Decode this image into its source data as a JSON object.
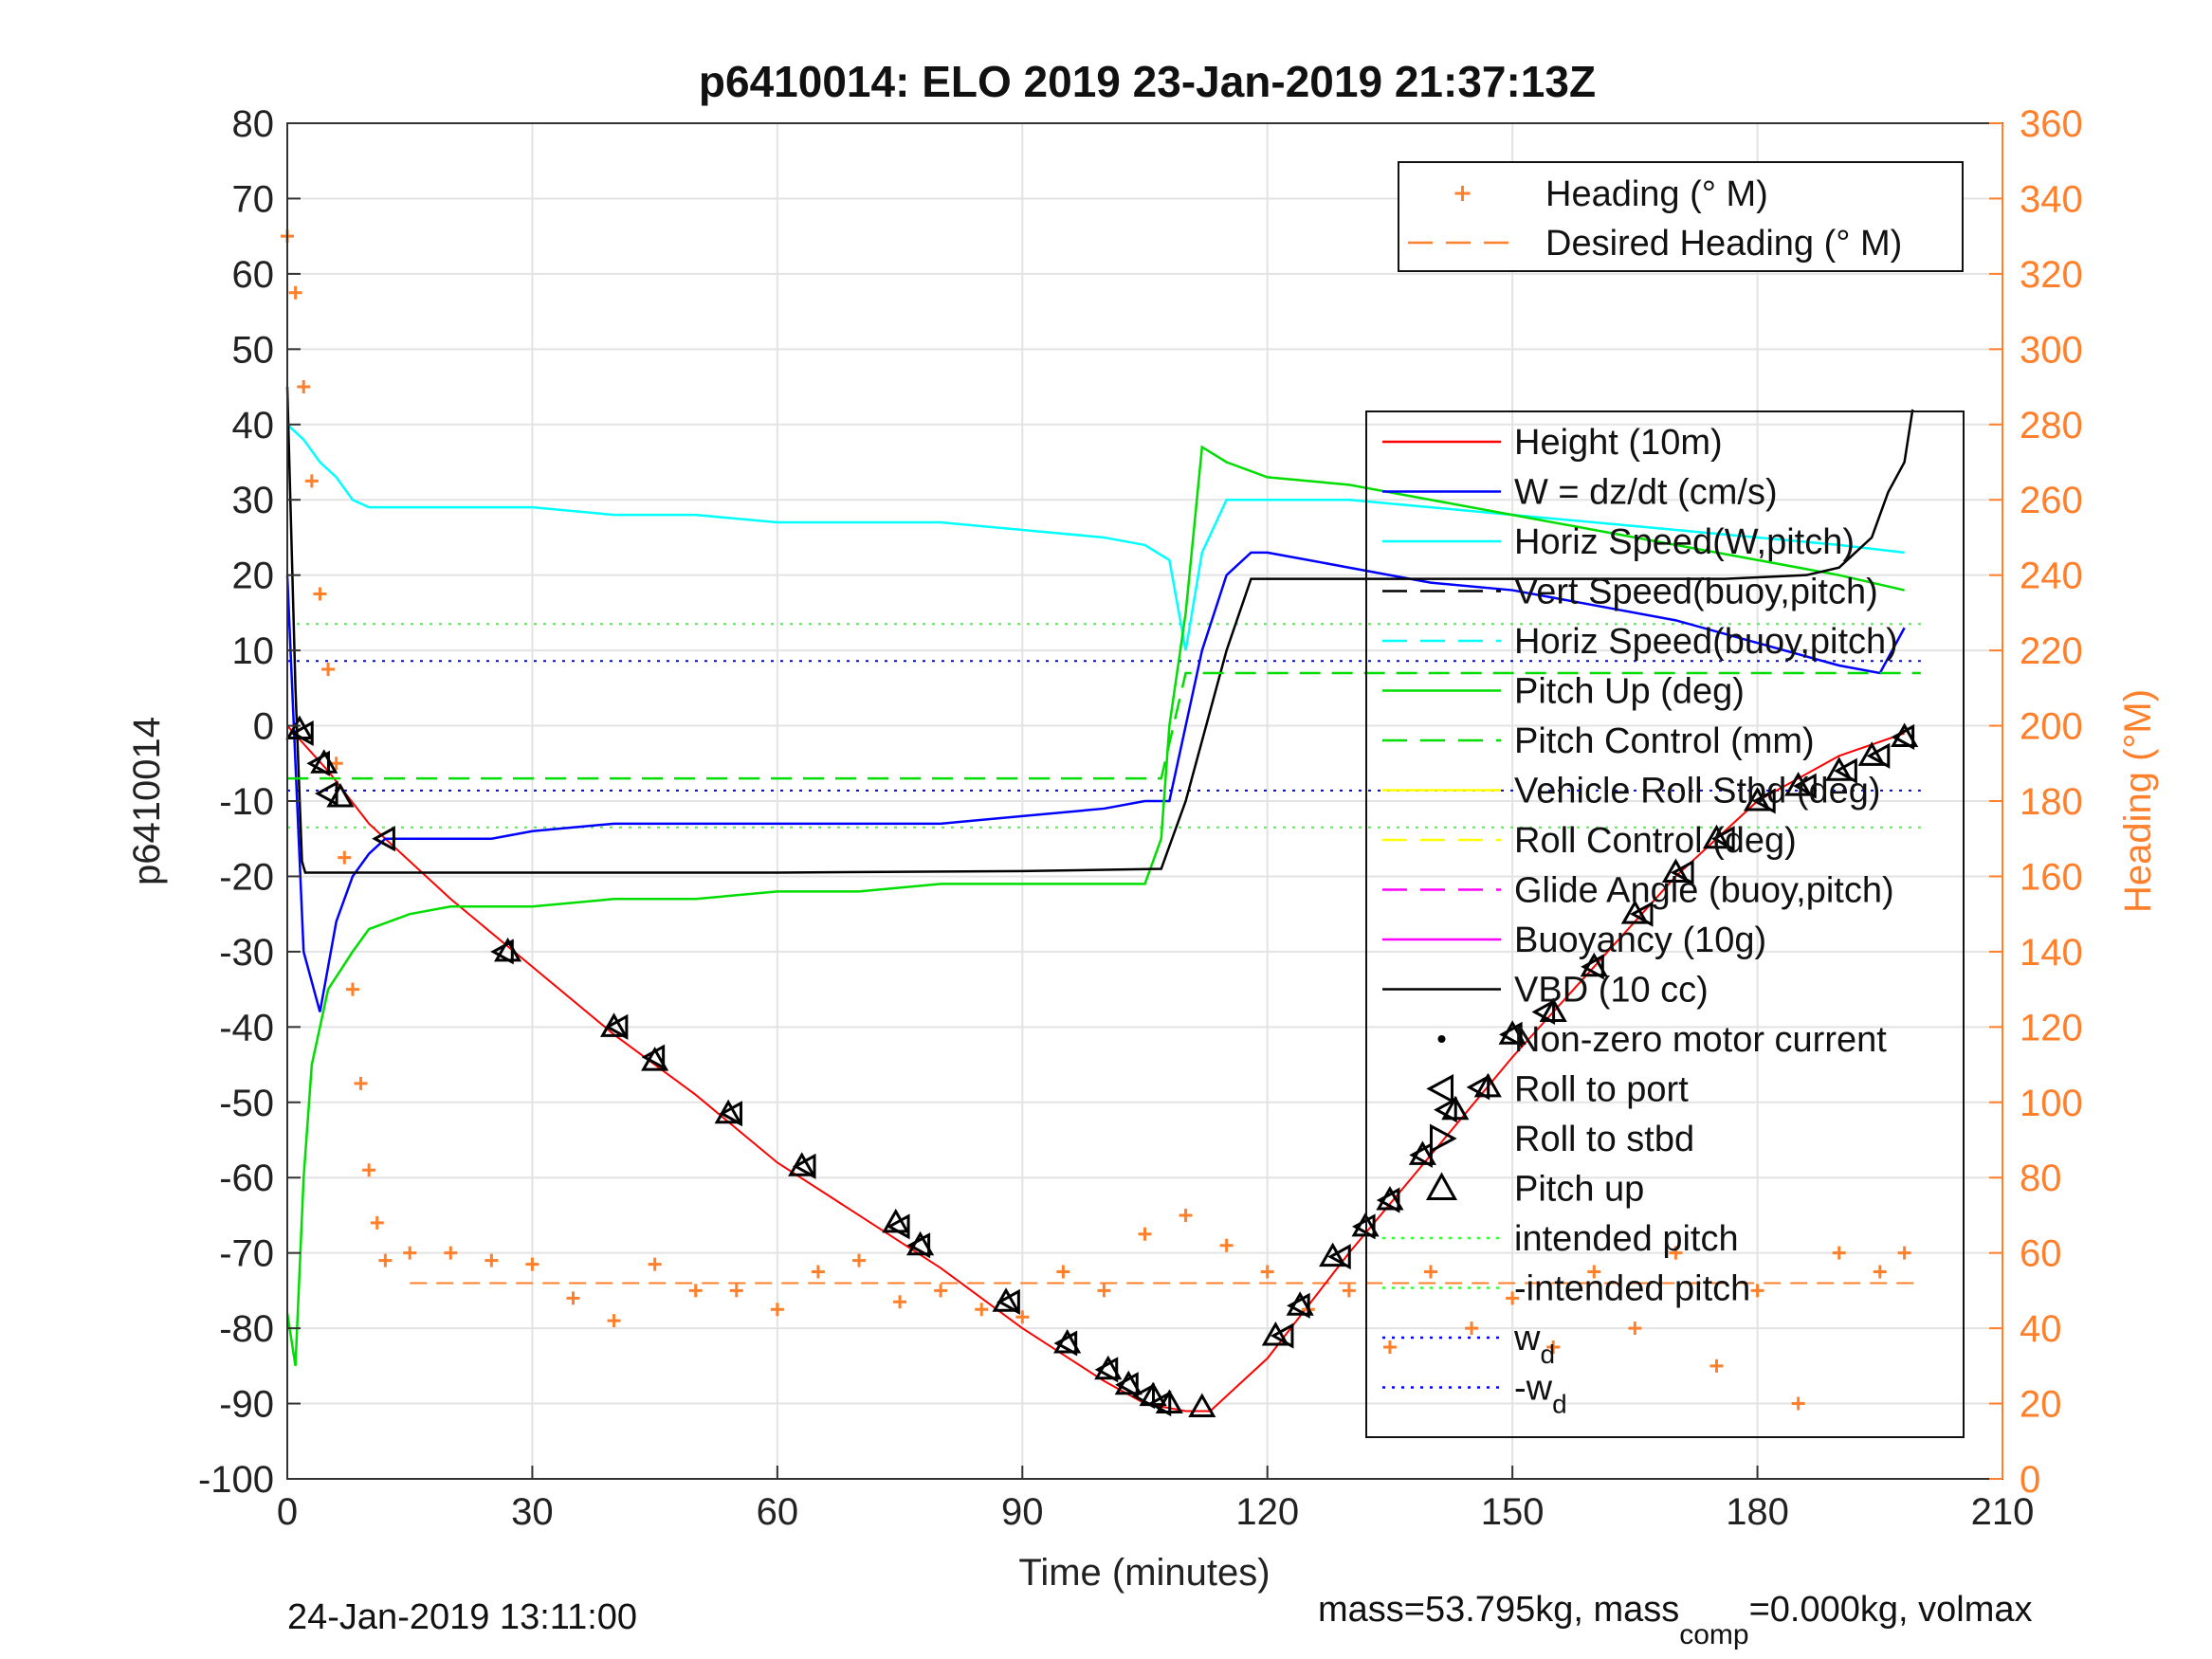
{
  "chart_data": {
    "type": "line",
    "title": "p6410014: ELO 2019 23-Jan-2019 21:37:13Z",
    "xlabel": "Time (minutes)",
    "ylabel": "p6410014",
    "y2label": "Heading (°M)",
    "xlim": [
      0,
      210
    ],
    "ylim": [
      -100,
      80
    ],
    "y2lim": [
      0,
      360
    ],
    "x_ticks": [
      0,
      30,
      60,
      90,
      120,
      150,
      180,
      210
    ],
    "y_ticks": [
      80,
      70,
      60,
      50,
      40,
      30,
      20,
      10,
      0,
      -10,
      -20,
      -30,
      -40,
      -50,
      -60,
      -70,
      -80,
      -90,
      -100
    ],
    "y2_ticks": [
      360,
      340,
      320,
      300,
      280,
      260,
      240,
      220,
      200,
      180,
      160,
      140,
      120,
      100,
      80,
      60,
      40,
      20,
      0
    ],
    "grid": true,
    "footer_left": "24-Jan-2019 13:11:00",
    "footer_right": "mass=53.795kg, mass<sub>comp</sub>=0.000kg, volmax",
    "legend_top": {
      "placement": "top-right",
      "entries": [
        {
          "label": "Heading (° M)",
          "color": "#ff7f2a",
          "style": "plus"
        },
        {
          "label": "Desired Heading (° M)",
          "color": "#ff7f2a",
          "style": "dashed"
        }
      ]
    },
    "legend_main": {
      "placement": "right",
      "entries": [
        {
          "label": "Height (10m)",
          "color": "#ff0000",
          "style": "solid"
        },
        {
          "label": "W = dz/dt (cm/s)",
          "color": "#0000ff",
          "style": "solid"
        },
        {
          "label": "Horiz Speed(W,pitch)",
          "color": "#00ffff",
          "style": "solid"
        },
        {
          "label": "Vert Speed(buoy,pitch)",
          "color": "#000000",
          "style": "dashed"
        },
        {
          "label": "Horiz Speed(buoy,pitch)",
          "color": "#00ffff",
          "style": "dashed"
        },
        {
          "label": "Pitch Up (deg)",
          "color": "#00dd00",
          "style": "solid"
        },
        {
          "label": "Pitch Control (mm)",
          "color": "#00dd00",
          "style": "dashed"
        },
        {
          "label": "Vehicle Roll Stbd (deg)",
          "color": "#ffff00",
          "style": "solid"
        },
        {
          "label": "Roll Control (deg)",
          "color": "#ffff00",
          "style": "dashed"
        },
        {
          "label": "Glide Angle (buoy,pitch)",
          "color": "#ff00ff",
          "style": "dashed"
        },
        {
          "label": "Buoyancy (10g)",
          "color": "#ff00ff",
          "style": "solid"
        },
        {
          "label": "VBD (10 cc)",
          "color": "#000000",
          "style": "solid"
        },
        {
          "label": "Non-zero motor current",
          "color": "#000000",
          "style": "dot"
        },
        {
          "label": "Roll to port",
          "color": "#000000",
          "style": "tri-left"
        },
        {
          "label": "Roll to stbd",
          "color": "#000000",
          "style": "tri-right"
        },
        {
          "label": "Pitch up",
          "color": "#000000",
          "style": "tri-up"
        },
        {
          "label": "intended pitch",
          "color": "#33ff33",
          "style": "dotted"
        },
        {
          "label": "-intended pitch",
          "color": "#33ff33",
          "style": "dotted"
        },
        {
          "label": "w_d",
          "color": "#0000ff",
          "style": "dotted",
          "main": "w",
          "sub": "d"
        },
        {
          "label": "-w_d",
          "color": "#0000ff",
          "style": "dotted",
          "main": "-w",
          "sub": "d"
        }
      ]
    },
    "reference_lines": [
      {
        "name": "intended pitch",
        "y": 13.5,
        "color": "#33ff33"
      },
      {
        "name": "-intended pitch",
        "y": -13.5,
        "color": "#33ff33"
      },
      {
        "name": "w_d",
        "y": 8.6,
        "color": "#0000ff"
      },
      {
        "name": "-w_d",
        "y": -8.6,
        "color": "#0000ff"
      },
      {
        "name": "desired heading",
        "y2": 52,
        "color": "#ff7f2a"
      }
    ],
    "series": [
      {
        "name": "Height (10m)",
        "color": "#ff0000",
        "x": [
          0,
          5,
          10,
          20,
          30,
          40,
          50,
          60,
          70,
          80,
          90,
          100,
          105,
          110,
          113,
          116,
          120,
          125,
          130,
          140,
          150,
          160,
          170,
          180,
          190,
          198
        ],
        "y": [
          0,
          -6,
          -13,
          -23,
          -32,
          -41,
          -49,
          -58,
          -65,
          -72,
          -80,
          -87,
          -90,
          -91,
          -91,
          -88,
          -84,
          -77,
          -70,
          -57,
          -44,
          -32,
          -20,
          -10,
          -4,
          -1
        ]
      },
      {
        "name": "W = dz/dt (cm/s)",
        "color": "#0000ff",
        "x": [
          0,
          2,
          4,
          6,
          8,
          10,
          12,
          15,
          20,
          25,
          30,
          40,
          50,
          60,
          70,
          80,
          90,
          100,
          105,
          108,
          110,
          112,
          115,
          118,
          120,
          125,
          130,
          140,
          150,
          160,
          170,
          180,
          190,
          195,
          198
        ],
        "y": [
          20,
          -30,
          -38,
          -26,
          -20,
          -17,
          -15,
          -15,
          -15,
          -15,
          -14,
          -13,
          -13,
          -13,
          -13,
          -13,
          -12,
          -11,
          -10,
          -10,
          0,
          10,
          20,
          23,
          23,
          22,
          21,
          19,
          18,
          16,
          14,
          11,
          8,
          7,
          13
        ]
      },
      {
        "name": "Horiz Speed(W,pitch)",
        "color": "#00ffff",
        "x": [
          0,
          2,
          4,
          6,
          8,
          10,
          15,
          20,
          30,
          40,
          50,
          60,
          70,
          80,
          90,
          100,
          105,
          108,
          110,
          112,
          115,
          120,
          130,
          140,
          150,
          160,
          170,
          180,
          190,
          198
        ],
        "y": [
          40,
          38,
          35,
          33,
          30,
          29,
          29,
          29,
          29,
          28,
          28,
          27,
          27,
          27,
          26,
          25,
          24,
          22,
          10,
          23,
          30,
          30,
          30,
          29,
          28,
          27,
          26,
          25,
          24,
          23
        ]
      },
      {
        "name": "Pitch Up (deg)",
        "color": "#00dd00",
        "x": [
          0,
          1,
          2,
          3,
          5,
          8,
          10,
          15,
          20,
          30,
          40,
          50,
          60,
          70,
          80,
          90,
          100,
          105,
          107,
          108,
          110,
          112,
          115,
          120,
          130,
          140,
          150,
          160,
          170,
          180,
          190,
          198
        ],
        "y": [
          -78,
          -85,
          -60,
          -45,
          -35,
          -30,
          -27,
          -25,
          -24,
          -24,
          -23,
          -23,
          -22,
          -22,
          -21,
          -21,
          -21,
          -21,
          -15,
          0,
          15,
          37,
          35,
          33,
          32,
          30,
          28,
          26,
          24,
          22,
          20,
          18
        ]
      },
      {
        "name": "VBD (10 cc)",
        "color": "#000000",
        "x": [
          0,
          1,
          1.8,
          2.2,
          30,
          60,
          90,
          107,
          110,
          115,
          118,
          140,
          160,
          176,
          186,
          190,
          194,
          196,
          198,
          199
        ],
        "y": [
          45,
          5,
          -18,
          -19.5,
          -19.5,
          -19.5,
          -19.3,
          -19,
          -10,
          10,
          19.5,
          19.5,
          19.5,
          19.5,
          20,
          21,
          25,
          31,
          35,
          42
        ]
      },
      {
        "name": "Pitch Control (mm)",
        "color": "#00dd00",
        "x": [
          0,
          30,
          60,
          90,
          107,
          110,
          200
        ],
        "y": [
          -7,
          -7,
          -7,
          -7,
          -7,
          7,
          7
        ]
      },
      {
        "name": "Heading (° M)",
        "color": "#ff7f2a",
        "axis": "right",
        "x": [
          0,
          1,
          2,
          3,
          4,
          5,
          6,
          7,
          8,
          9,
          10,
          11,
          12,
          15,
          20,
          25,
          30,
          35,
          40,
          45,
          50,
          55,
          60,
          65,
          70,
          75,
          80,
          85,
          90,
          95,
          100,
          105,
          110,
          115,
          120,
          125,
          130,
          135,
          140,
          145,
          150,
          155,
          160,
          165,
          170,
          175,
          180,
          185,
          190,
          195,
          198
        ],
        "y": [
          330,
          315,
          290,
          265,
          235,
          215,
          190,
          165,
          130,
          105,
          82,
          68,
          58,
          60,
          60,
          58,
          57,
          48,
          42,
          57,
          50,
          50,
          45,
          55,
          58,
          47,
          50,
          45,
          43,
          55,
          50,
          65,
          70,
          62,
          55,
          45,
          50,
          35,
          55,
          40,
          48,
          35,
          55,
          40,
          60,
          30,
          50,
          20,
          60,
          55,
          60
        ]
      }
    ],
    "markers": {
      "roll_to_port_x": [
        2,
        4,
        5,
        12,
        26.5,
        40.5,
        45,
        54.5,
        63.5,
        75,
        77.5,
        88.5,
        95.5,
        100.5,
        103,
        105,
        107,
        122,
        124,
        129,
        132,
        135,
        139,
        142,
        146,
        150,
        154,
        160,
        166,
        171,
        176,
        181,
        186,
        191,
        195,
        198
      ],
      "roll_to_port_y": [
        -1,
        -5,
        -9,
        -15,
        -30,
        -40,
        -44,
        -51.5,
        -58.5,
        -66.5,
        -69,
        -76.5,
        -82,
        -85.5,
        -87.5,
        -89,
        -90,
        -81,
        -77,
        -70.5,
        -66.5,
        -63,
        -57,
        -51,
        -48,
        -41,
        -38,
        -32,
        -25,
        -19.5,
        -15,
        -10,
        -8,
        -6,
        -4,
        -1.5
      ],
      "pitch_up_x": [
        1.5,
        4.5,
        6.5,
        27,
        40,
        45,
        54,
        63,
        74.5,
        77.5,
        88,
        95.5,
        100.5,
        103,
        106,
        108,
        112,
        121,
        124,
        128,
        132,
        135,
        139,
        143,
        147,
        150,
        155,
        160,
        165,
        170,
        175,
        180,
        185,
        190,
        194,
        198
      ],
      "pitch_up_y": [
        -0.5,
        -5,
        -9.5,
        -30,
        -40,
        -44.5,
        -51.5,
        -58.5,
        -66,
        -69,
        -76.5,
        -82,
        -85.5,
        -87.5,
        -89,
        -90,
        -90.5,
        -81,
        -77,
        -70.5,
        -66.5,
        -63,
        -57,
        -51,
        -48,
        -41,
        -38,
        -32,
        -25,
        -19.5,
        -15,
        -10,
        -8,
        -6,
        -4,
        -1.5
      ]
    }
  }
}
